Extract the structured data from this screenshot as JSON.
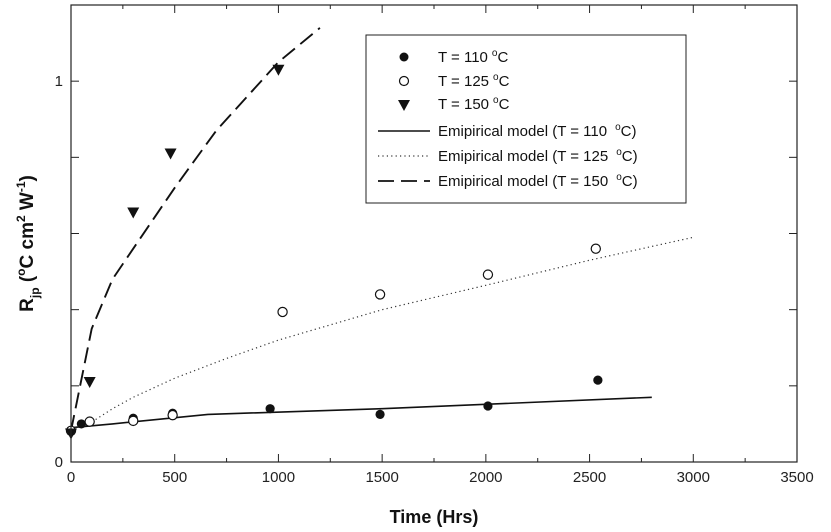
{
  "chart_data": {
    "type": "scatter",
    "title": "",
    "xlabel": "Time (Hrs)",
    "ylabel": {
      "base": "R",
      "subscript": "jp",
      "open": " (",
      "degree": "o",
      "unit_c": "C cm",
      "squared": "2",
      "unit_w": " W",
      "inverse": "-1",
      "close": ")"
    },
    "xlim": [
      0,
      3500
    ],
    "ylim": [
      0,
      1.2
    ],
    "x_major_ticks": [
      0,
      500,
      1000,
      1500,
      2000,
      2500,
      3000,
      3500
    ],
    "x_tick_labels": [
      "0",
      "500",
      "1000",
      "1500",
      "2000",
      "2500",
      "3000",
      "3500"
    ],
    "y_major_ticks": [
      0,
      0.2,
      0.4,
      0.6,
      0.8,
      1.0,
      1.2
    ],
    "y_tick_labels": [
      {
        "value": 0,
        "label": "0"
      },
      {
        "value": 1,
        "label": "1"
      }
    ],
    "grid": false,
    "legend_position": "top-right",
    "series": [
      {
        "name": "T = 110 °C",
        "label_text": "T = 110",
        "unit": "C",
        "kind": "points",
        "marker": "filled-circle",
        "x": [
          0,
          50,
          300,
          490,
          960,
          1490,
          2010,
          2540
        ],
        "y": [
          0.082,
          0.1,
          0.115,
          0.128,
          0.14,
          0.125,
          0.147,
          0.215
        ]
      },
      {
        "name": "T = 125 °C",
        "label_text": "T = 125",
        "unit": "C",
        "kind": "points",
        "marker": "open-circle",
        "x": [
          0,
          90,
          300,
          490,
          1020,
          1490,
          2010,
          2530
        ],
        "y": [
          0.082,
          0.106,
          0.108,
          0.123,
          0.394,
          0.44,
          0.492,
          0.56
        ]
      },
      {
        "name": "T = 150 °C",
        "label_text": "T = 150",
        "unit": "C",
        "kind": "points",
        "marker": "filled-triangle-down",
        "x": [
          0,
          90,
          300,
          480,
          1000
        ],
        "y": [
          0.075,
          0.21,
          0.655,
          0.81,
          1.03
        ]
      },
      {
        "name": "Emipirical model (T = 110 °C)",
        "label_text": "Emipirical model (T = 110",
        "label_close": "C)",
        "kind": "line",
        "style": "solid",
        "x": [
          0,
          200,
          660,
          1500,
          2800
        ],
        "y": [
          0.09,
          0.1,
          0.125,
          0.14,
          0.17
        ]
      },
      {
        "name": "Emipirical model (T = 125 °C)",
        "label_text": "Emipirical model (T = 125",
        "label_close": "C)",
        "kind": "line",
        "style": "dotted",
        "x": [
          0,
          100,
          200,
          300,
          500,
          750,
          1000,
          1500,
          2000,
          2500,
          3000
        ],
        "y": [
          0.088,
          0.105,
          0.14,
          0.17,
          0.22,
          0.272,
          0.32,
          0.4,
          0.464,
          0.53,
          0.59
        ]
      },
      {
        "name": "Emipirical model (T = 150 °C)",
        "label_text": "Emipirical model (T = 150",
        "label_close": "C)",
        "kind": "line",
        "style": "dashed",
        "x": [
          0,
          100,
          200,
          300,
          500,
          700,
          1000,
          1200
        ],
        "y": [
          0.082,
          0.35,
          0.48,
          0.56,
          0.72,
          0.87,
          1.05,
          1.14
        ]
      }
    ]
  }
}
